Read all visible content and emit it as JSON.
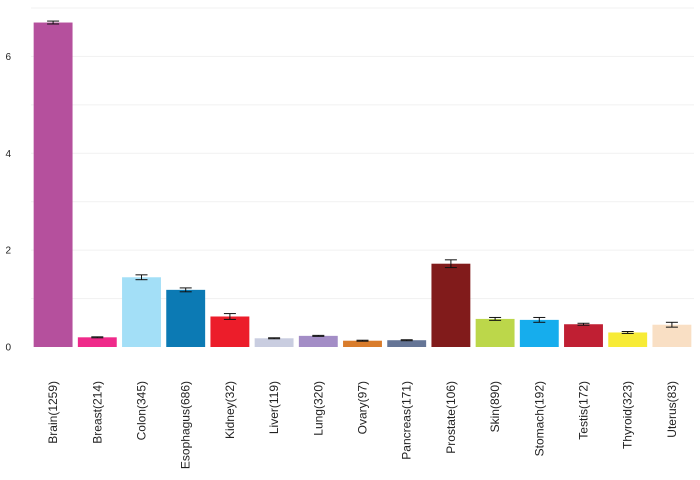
{
  "chart_data": {
    "type": "bar",
    "title": "",
    "xlabel": "",
    "ylabel": "",
    "ylim": [
      0,
      7
    ],
    "yticks": [
      0,
      2,
      4,
      6
    ],
    "grid": true,
    "categories": [
      "Brain(1259)",
      "Breast(214)",
      "Colon(345)",
      "Esophagus(686)",
      "Kidney(32)",
      "Liver(119)",
      "Lung(320)",
      "Ovary(97)",
      "Pancreas(171)",
      "Prostate(106)",
      "Skin(890)",
      "Stomach(192)",
      "Testis(172)",
      "Thyroid(323)",
      "Uterus(83)"
    ],
    "values": [
      6.7,
      0.2,
      1.44,
      1.18,
      0.63,
      0.18,
      0.23,
      0.13,
      0.14,
      1.72,
      0.58,
      0.56,
      0.47,
      0.3,
      0.46
    ],
    "errors": [
      0.03,
      0.01,
      0.05,
      0.04,
      0.06,
      0.01,
      0.01,
      0.01,
      0.01,
      0.08,
      0.03,
      0.05,
      0.02,
      0.02,
      0.05
    ],
    "colors": [
      "#b5509d",
      "#ef2a8a",
      "#a3dff7",
      "#0c7ab4",
      "#ec1d2a",
      "#c9cde0",
      "#a38dc6",
      "#d97c2b",
      "#657596",
      "#811b1b",
      "#bcd74a",
      "#16aded",
      "#c01f33",
      "#f7eb36",
      "#f9dfc4"
    ]
  }
}
